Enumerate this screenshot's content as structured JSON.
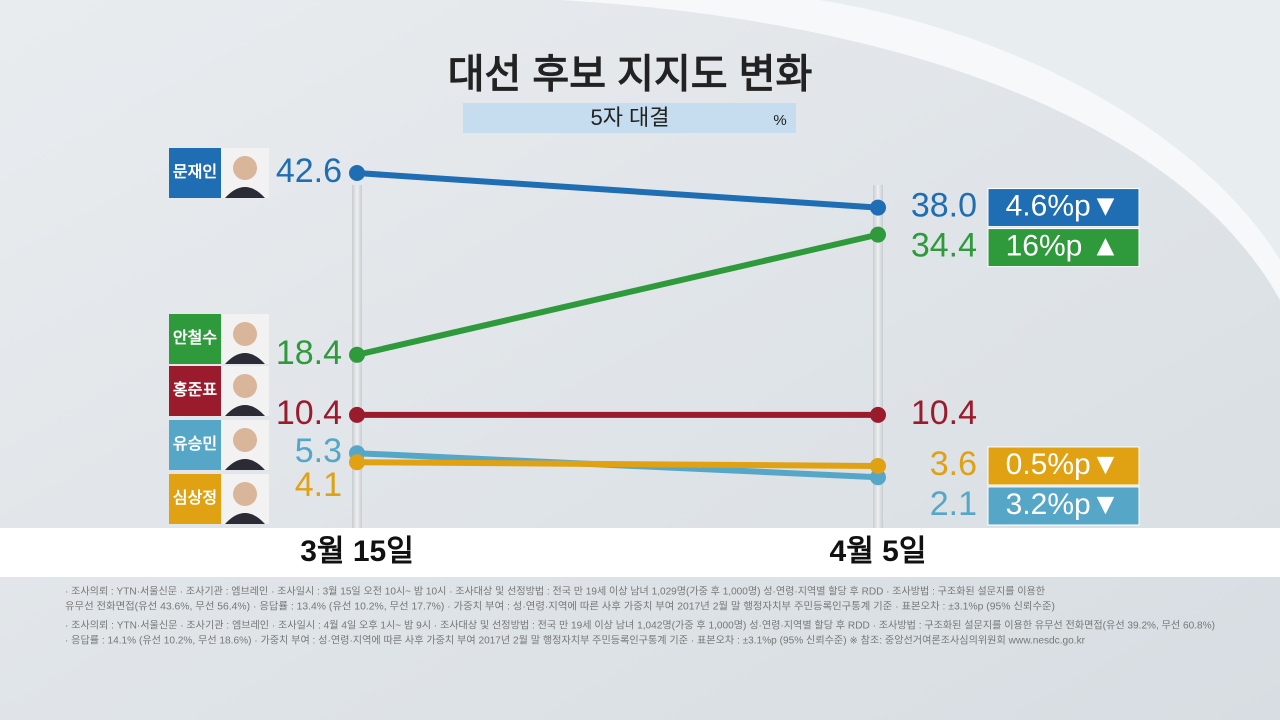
{
  "chart_data": {
    "type": "slope",
    "title": "대선 후보 지지도 변화",
    "subtitle": "5자 대결",
    "unit": "%",
    "categories": [
      "3월 15일",
      "4월 5일"
    ],
    "ylim": [
      0,
      45
    ],
    "series": [
      {
        "name": "문재인",
        "color": "#1f6db3",
        "values": [
          42.6,
          38.0
        ],
        "value_labels": [
          "42.6",
          "38.0"
        ],
        "change": "4.6%p▼"
      },
      {
        "name": "안철수",
        "color": "#2f9a3c",
        "values": [
          18.4,
          34.4
        ],
        "value_labels": [
          "18.4",
          "34.4"
        ],
        "change": "16%p ▲"
      },
      {
        "name": "홍준표",
        "color": "#9a1b2c",
        "values": [
          10.4,
          10.4
        ],
        "value_labels": [
          "10.4",
          "10.4"
        ]
      },
      {
        "name": "유승민",
        "color": "#55a6c7",
        "values": [
          5.3,
          2.1
        ],
        "value_labels": [
          "5.3",
          "2.1"
        ],
        "change": "3.2%p▼"
      },
      {
        "name": "심상정",
        "color": "#e0a112",
        "values": [
          4.1,
          3.6
        ],
        "value_labels": [
          "4.1",
          "3.6"
        ],
        "change": "0.5%p▼"
      }
    ],
    "notes": [
      "· 조사의뢰 : YTN·서울신문    · 조사기관 : 엠브레인    · 조사일시 : 3월 15일 오전 10시~ 밤 10시    · 조사대상 및 선정방법 : 전국 만 19세 이상 남녀 1,029명(가중 후 1,000명) 성·연령·지역별 할당 후 RDD    · 조사방법 : 구조화된 설문지를 이용한",
      "유무선 전화면접(유선 43.6%, 무선 56.4%)    · 응답률 : 13.4% (유선 10.2%, 무선 17.7%)    · 가중치 부여 : 성·연령·지역에 따른 사후 가중치 부여   2017년 2월 말 행정자치부 주민등록인구통계 기준    · 표본오차 : ±3.1%p (95% 신뢰수준)",
      "· 조사의뢰 : YTN·서울신문    · 조사기관 : 엠브레인    · 조사일시 : 4월 4일 오후 1시~ 밤 9시    · 조사대상 및 선정방법 : 전국 만 19세 이상 남녀 1,042명(가중 후 1,000명) 성·연령·지역별 할당 후 RDD    · 조사방법 : 구조화된 설문지를 이용한 유무선 전화면접(유선 39.2%, 무선 60.8%)",
      "· 응답률 : 14.1% (유선 10.2%, 무선 18.6%)    · 가중치 부여 : 성·연령·지역에 따른 사후 가중치 부여   2017년 2월 말 행정자치부 주민등록인구통계 기준    · 표본오차 : ±3.1%p (95% 신뢰수준)    ※ 참조: 중앙선거여론조사심의위원회 www.nesdc.go.kr"
    ]
  }
}
